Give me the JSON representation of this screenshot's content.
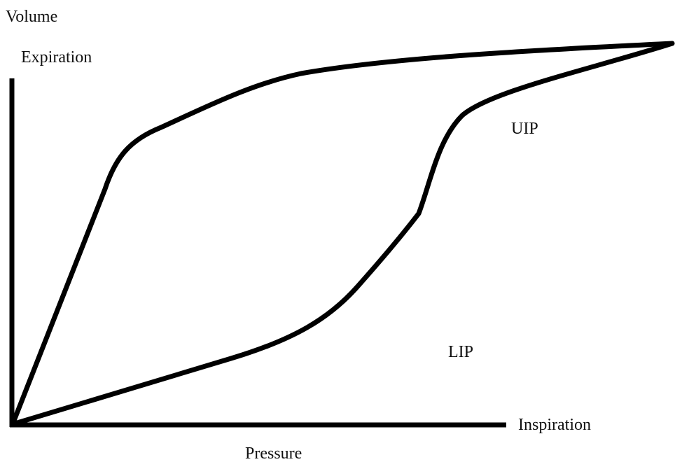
{
  "axes": {
    "y_label": "Volume",
    "x_label": "Pressure"
  },
  "annotations": {
    "expiration": "Expiration",
    "inspiration": "Inspiration",
    "uip": "UIP",
    "lip": "LIP"
  }
}
